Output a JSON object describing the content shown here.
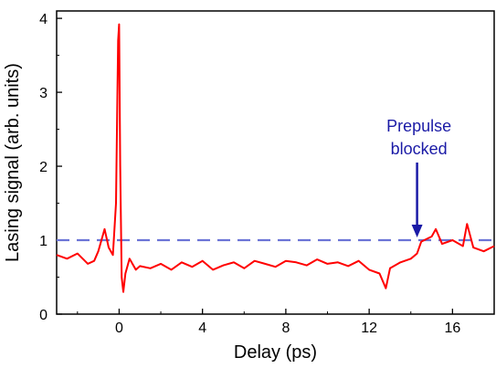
{
  "chart_data": {
    "type": "line",
    "title": "",
    "xlabel": "Delay (ps)",
    "ylabel": "Lasing signal (arb. units)",
    "xlim": [
      -3,
      18
    ],
    "ylim": [
      0,
      4.1
    ],
    "x_ticks": [
      0,
      4,
      8,
      12,
      16
    ],
    "x_tick_labels": [
      "0",
      "4",
      "8",
      "12",
      "16"
    ],
    "y_ticks": [
      0,
      1,
      2,
      3,
      4
    ],
    "y_tick_labels": [
      "0",
      "1",
      "2",
      "3",
      "4"
    ],
    "grid": false,
    "series": [
      {
        "color": "#ff0000",
        "x": [
          -3.0,
          -2.5,
          -2.0,
          -1.5,
          -1.2,
          -1.0,
          -0.7,
          -0.5,
          -0.3,
          -0.15,
          -0.05,
          0.0,
          0.05,
          0.12,
          0.2,
          0.3,
          0.5,
          0.8,
          1.0,
          1.5,
          2.0,
          2.5,
          3.0,
          3.5,
          4.0,
          4.5,
          5.0,
          5.5,
          6.0,
          6.5,
          7.0,
          7.5,
          8.0,
          8.5,
          9.0,
          9.5,
          10.0,
          10.5,
          11.0,
          11.5,
          12.0,
          12.5,
          12.8,
          13.0,
          13.5,
          14.0,
          14.3,
          14.5,
          15.0,
          15.2,
          15.5,
          16.0,
          16.5,
          16.7,
          17.0,
          17.5,
          18.0
        ],
        "y": [
          0.8,
          0.75,
          0.82,
          0.68,
          0.72,
          0.85,
          1.15,
          0.9,
          0.8,
          1.5,
          3.7,
          3.92,
          2.0,
          0.5,
          0.3,
          0.55,
          0.75,
          0.6,
          0.65,
          0.62,
          0.68,
          0.6,
          0.7,
          0.64,
          0.72,
          0.6,
          0.66,
          0.7,
          0.62,
          0.72,
          0.68,
          0.64,
          0.72,
          0.7,
          0.66,
          0.74,
          0.68,
          0.7,
          0.65,
          0.72,
          0.6,
          0.55,
          0.35,
          0.62,
          0.7,
          0.75,
          0.82,
          0.98,
          1.05,
          1.15,
          0.95,
          1.0,
          0.92,
          1.22,
          0.9,
          0.85,
          0.92
        ]
      }
    ],
    "reference_line": {
      "y": 1.0,
      "style": "dashed",
      "color": "#6b74d6"
    },
    "annotation": {
      "lines": [
        "Prepulse",
        "blocked"
      ],
      "arrow_x": 14.3,
      "arrow_y": 1.0,
      "color": "#1a1aa6"
    }
  }
}
